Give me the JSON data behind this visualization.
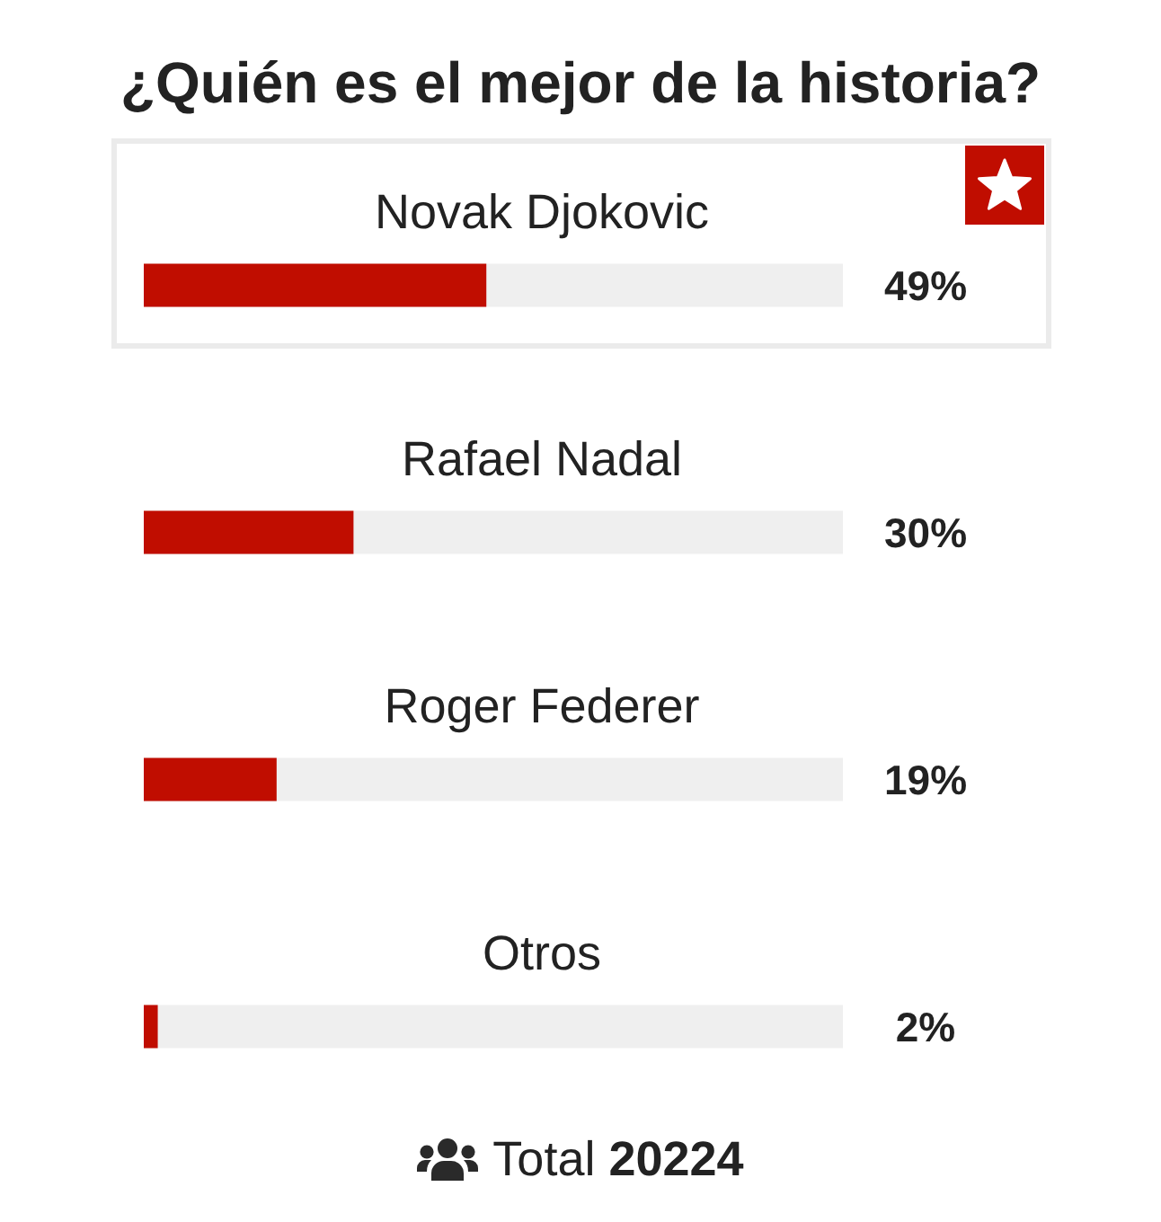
{
  "chart_data": {
    "type": "bar",
    "orientation": "horizontal",
    "title": "¿Quién es el mejor de la historia?",
    "categories": [
      "Novak Djokovic",
      "Rafael Nadal",
      "Roger Federer",
      "Otros"
    ],
    "values": [
      49,
      30,
      19,
      2
    ],
    "value_labels": [
      "49%",
      "30%",
      "19%",
      "2%"
    ],
    "color": "#c00d00",
    "xlim": [
      0,
      100
    ],
    "tick_labels": "y",
    "annotations": [
      "Total 20224"
    ]
  }
}
